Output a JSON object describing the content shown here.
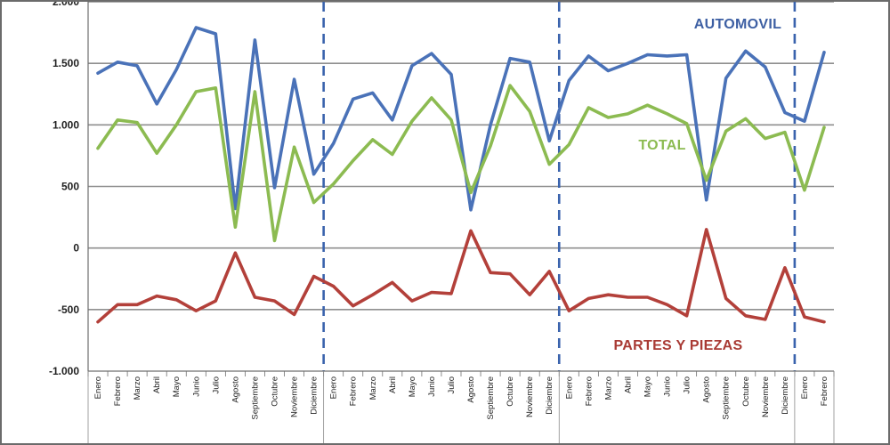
{
  "chart_data": {
    "type": "line",
    "title": "",
    "xlabel": "",
    "ylabel": "",
    "ylim": [
      -1000,
      2000
    ],
    "yticks": [
      -1000,
      -500,
      0,
      500,
      1000,
      1500,
      2000
    ],
    "ytick_labels": [
      "-1.000",
      "-500",
      "0",
      "500",
      "1.000",
      "1.500",
      "2.000"
    ],
    "grid": true,
    "categories": [
      "Enero",
      "Febrero",
      "Marzo",
      "Abril",
      "Mayo",
      "Junio",
      "Julio",
      "Agosto",
      "Septiembre",
      "Octubre",
      "Noviembre",
      "Diciembre",
      "Enero",
      "Febrero",
      "Marzo",
      "Abril",
      "Mayo",
      "Junio",
      "Julio",
      "Agosto",
      "Septiembre",
      "Octubre",
      "Noviembre",
      "Diciembre",
      "Enero",
      "Febrero",
      "Marzo",
      "Abril",
      "Mayo",
      "Junio",
      "Julio",
      "Agosto",
      "Septiembre",
      "Octubre",
      "Noviembre",
      "Diciembre",
      "Enero",
      "Febrero"
    ],
    "year_separators_after_index": [
      11,
      23,
      35
    ],
    "series": [
      {
        "name": "AUTOMOVIL",
        "color": "#4a72b8",
        "values": [
          1420,
          1510,
          1480,
          1170,
          1450,
          1790,
          1740,
          320,
          1690,
          490,
          1370,
          600,
          850,
          1210,
          1260,
          1040,
          1480,
          1580,
          1410,
          310,
          1000,
          1540,
          1510,
          870,
          1360,
          1560,
          1440,
          1500,
          1570,
          1560,
          1570,
          390,
          1380,
          1600,
          1470,
          1100,
          1030,
          1590
        ]
      },
      {
        "name": "TOTAL",
        "color": "#8cbb51",
        "values": [
          810,
          1040,
          1020,
          770,
          1000,
          1270,
          1300,
          170,
          1270,
          60,
          820,
          370,
          520,
          710,
          880,
          760,
          1030,
          1220,
          1040,
          450,
          830,
          1320,
          1110,
          680,
          840,
          1140,
          1060,
          1090,
          1160,
          1090,
          1010,
          550,
          950,
          1050,
          890,
          940,
          470,
          980
        ]
      },
      {
        "name": "PARTES Y PIEZAS",
        "color": "#b3403a",
        "values": [
          -600,
          -460,
          -460,
          -390,
          -420,
          -510,
          -430,
          -40,
          -400,
          -430,
          -540,
          -230,
          -310,
          -470,
          -380,
          -280,
          -430,
          -360,
          -370,
          140,
          -200,
          -210,
          -380,
          -190,
          -510,
          -410,
          -380,
          -400,
          -400,
          -460,
          -550,
          150,
          -410,
          -550,
          -580,
          -160,
          -560,
          -600
        ]
      }
    ]
  }
}
